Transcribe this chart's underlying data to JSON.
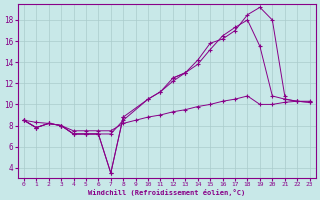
{
  "xlabel": "Windchill (Refroidissement éolien,°C)",
  "bg_color": "#c8e8e8",
  "grid_color": "#aacccc",
  "line_color": "#880088",
  "xlim": [
    -0.5,
    23.5
  ],
  "ylim": [
    3.0,
    19.5
  ],
  "xticks": [
    0,
    1,
    2,
    3,
    4,
    5,
    6,
    7,
    8,
    9,
    10,
    11,
    12,
    13,
    14,
    15,
    16,
    17,
    18,
    19,
    20,
    21,
    22,
    23
  ],
  "yticks": [
    4,
    6,
    8,
    10,
    12,
    14,
    16,
    18
  ],
  "lines": [
    {
      "segments": [
        {
          "x": [
            0,
            1,
            2,
            3,
            4,
            5,
            6,
            7,
            8
          ],
          "y": [
            8.5,
            7.8,
            8.2,
            8.0,
            7.2,
            7.2,
            7.2,
            3.5,
            8.8
          ]
        },
        {
          "x": [
            12,
            13
          ],
          "y": [
            12.5,
            13.0
          ]
        },
        {
          "x": [
            21,
            22,
            23
          ],
          "y": [
            10.5,
            10.3,
            10.2
          ]
        }
      ]
    },
    {
      "segments": [
        {
          "x": [
            0,
            1,
            2,
            3,
            4,
            5,
            6,
            7,
            8,
            10,
            11,
            12,
            13,
            14,
            15,
            16,
            17,
            18,
            19,
            20,
            21
          ],
          "y": [
            8.5,
            7.8,
            8.2,
            8.0,
            7.2,
            7.2,
            7.2,
            3.5,
            8.8,
            10.5,
            11.2,
            12.5,
            13.0,
            14.2,
            15.8,
            16.2,
            17.0,
            18.5,
            19.2,
            18.0,
            10.8
          ]
        }
      ]
    },
    {
      "segments": [
        {
          "x": [
            0,
            1,
            2,
            3,
            4,
            5,
            6,
            7,
            8,
            9,
            10,
            11,
            12,
            13,
            14,
            15,
            16,
            17,
            18,
            19,
            20,
            21,
            22,
            23
          ],
          "y": [
            8.5,
            8.3,
            8.2,
            8.0,
            7.5,
            7.5,
            7.5,
            7.5,
            8.2,
            8.5,
            8.8,
            9.0,
            9.3,
            9.5,
            9.8,
            10.0,
            10.3,
            10.5,
            10.8,
            10.0,
            10.0,
            10.2,
            10.3,
            10.3
          ]
        }
      ]
    },
    {
      "segments": [
        {
          "x": [
            0,
            1,
            2,
            3,
            4,
            5,
            6,
            7,
            8,
            10,
            11,
            12,
            13,
            14,
            15,
            16,
            17,
            18,
            19,
            20,
            21,
            22,
            23
          ],
          "y": [
            8.5,
            7.8,
            8.2,
            8.0,
            7.2,
            7.2,
            7.2,
            7.2,
            8.5,
            10.5,
            11.2,
            12.2,
            13.0,
            13.8,
            15.2,
            16.5,
            17.3,
            18.0,
            15.5,
            10.8,
            10.5,
            10.3,
            10.2
          ]
        }
      ]
    }
  ]
}
